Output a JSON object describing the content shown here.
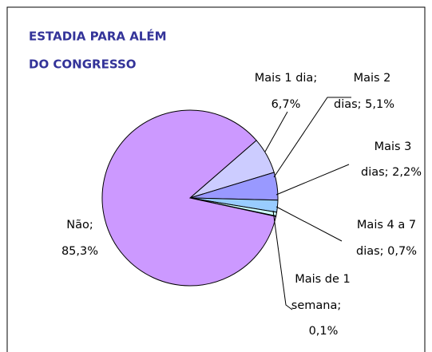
{
  "chart_data": {
    "type": "pie",
    "title": [
      "ESTADIA PARA ALÉM",
      "DO CONGRESSO"
    ],
    "values": [
      6.7,
      5.1,
      2.2,
      0.7,
      0.1,
      85.3
    ],
    "value_labels": [
      [
        "Mais 1 dia;",
        "6,7%"
      ],
      [
        "Mais 2",
        "dias; 5,1%"
      ],
      [
        "Mais 3",
        "dias; 2,2%"
      ],
      [
        "Mais 4 a 7",
        "dias; 0,7%"
      ],
      [
        "Mais de 1",
        "semana;",
        "0,1%"
      ],
      [
        "Não;",
        "85,3%"
      ]
    ],
    "colors": [
      "#ccccff",
      "#9999ff",
      "#99ccff",
      "#ccffff",
      "#ffffff",
      "#cc99ff"
    ]
  }
}
